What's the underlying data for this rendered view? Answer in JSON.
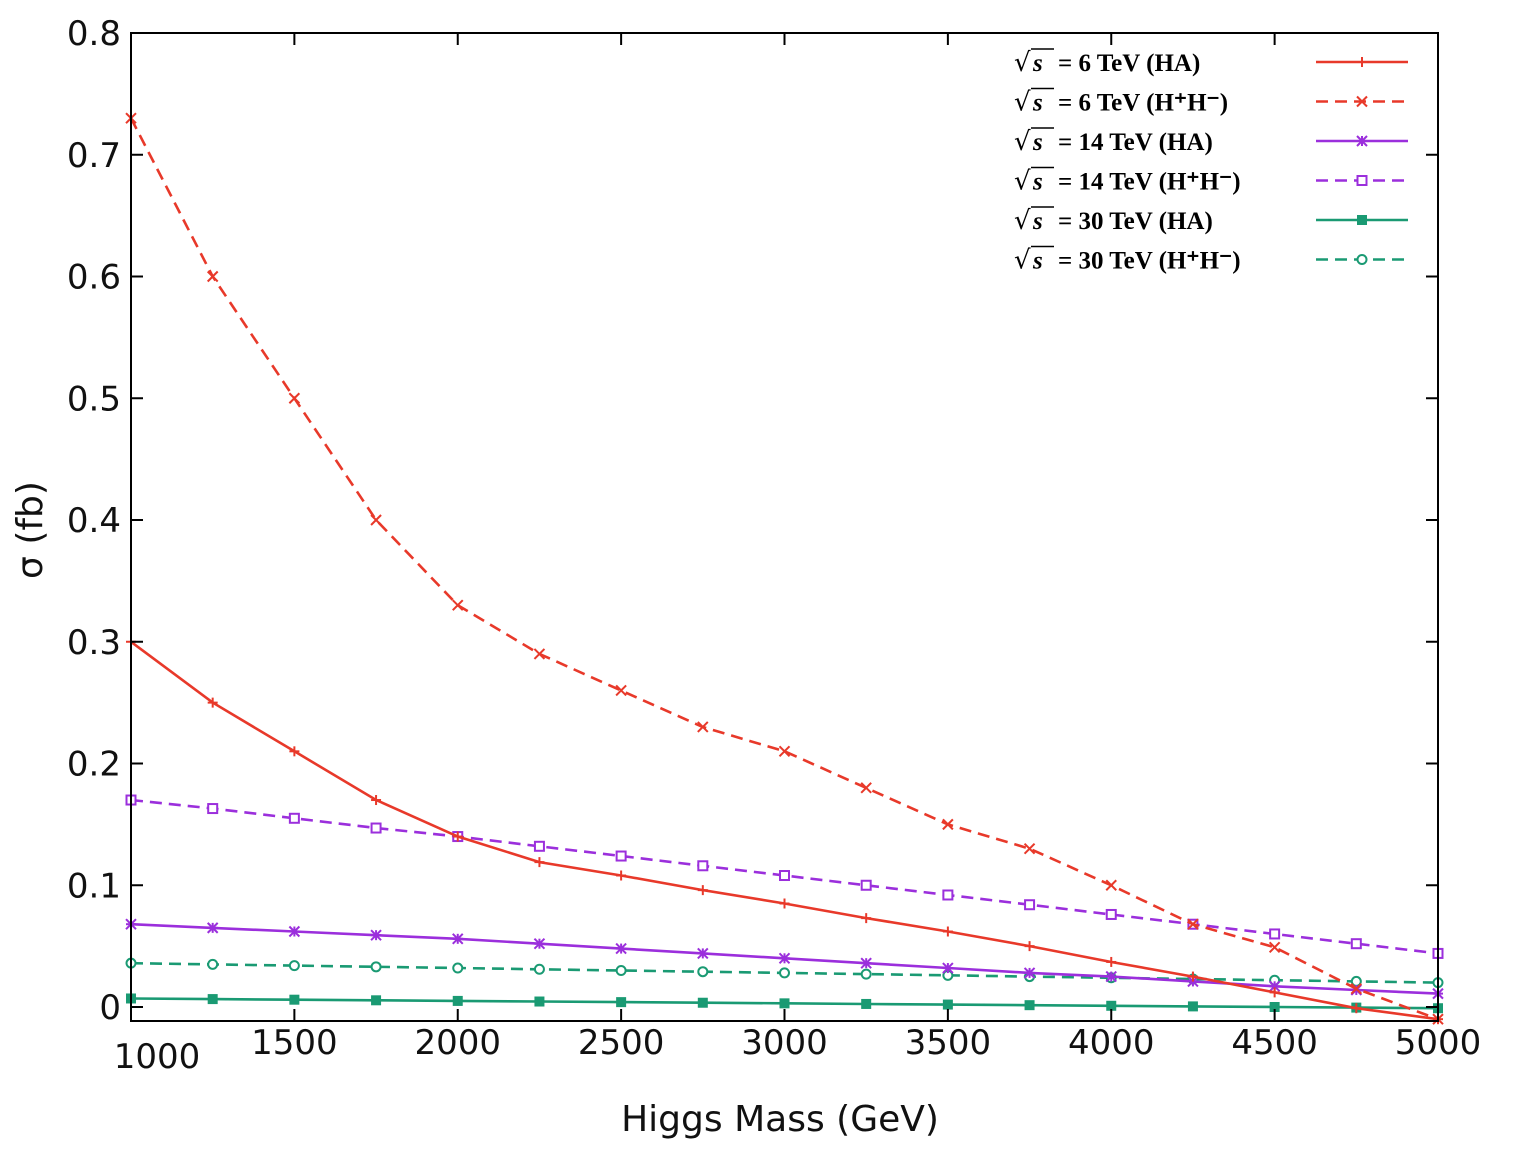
{
  "chart_data": {
    "type": "line",
    "title": "",
    "xlabel": "Higgs Mass (GeV)",
    "ylabel": "σ (fb)",
    "xlim": [
      1000,
      5000
    ],
    "ylim": [
      -0.01,
      0.8
    ],
    "xticks": [
      {
        "value": 1000,
        "label": "1000"
      },
      {
        "value": 1500,
        "label": "1500"
      },
      {
        "value": 2000,
        "label": "2000"
      },
      {
        "value": 2500,
        "label": "2500"
      },
      {
        "value": 3000,
        "label": "3000"
      },
      {
        "value": 3500,
        "label": "3500"
      },
      {
        "value": 4000,
        "label": "4000"
      },
      {
        "value": 4500,
        "label": "4500"
      },
      {
        "value": 5000,
        "label": "5000"
      }
    ],
    "yticks": [
      {
        "value": 0,
        "label": "0"
      },
      {
        "value": 0.1,
        "label": "0.1"
      },
      {
        "value": 0.2,
        "label": "0.2"
      },
      {
        "value": 0.3,
        "label": "0.3"
      },
      {
        "value": 0.4,
        "label": "0.4"
      },
      {
        "value": 0.5,
        "label": "0.5"
      },
      {
        "value": 0.6,
        "label": "0.6"
      },
      {
        "value": 0.7,
        "label": "0.7"
      },
      {
        "value": 0.8,
        "label": "0.8"
      }
    ],
    "grid": false,
    "legend_position": "top-right",
    "x": [
      1000,
      1250,
      1500,
      1750,
      2000,
      2250,
      2500,
      2750,
      3000,
      3250,
      3500,
      3750,
      4000,
      4250,
      4500,
      4750,
      5000
    ],
    "series": [
      {
        "name": "√s = 6 TeV (HA)",
        "label_main": "= 6  TeV (HA)",
        "color": "#e8392a",
        "dash": "solid",
        "marker": "plus",
        "values": [
          0.3,
          0.25,
          0.21,
          0.17,
          0.14,
          0.119,
          0.108,
          0.096,
          0.085,
          0.073,
          0.062,
          0.05,
          0.037,
          0.025,
          0.012,
          -0.001,
          -0.01
        ]
      },
      {
        "name": "√s = 6 TeV (H⁺H⁻)",
        "label_main": "= 6  TeV (H⁺H⁻)",
        "color": "#e8392a",
        "dash": "dashed",
        "marker": "cross",
        "values": [
          0.73,
          0.6,
          0.5,
          0.4,
          0.33,
          0.29,
          0.26,
          0.23,
          0.21,
          0.18,
          0.15,
          0.13,
          0.1,
          0.068,
          0.049,
          0.015,
          -0.01
        ]
      },
      {
        "name": "√s = 14 TeV (HA)",
        "label_main": "= 14  TeV (HA)",
        "color": "#9b2fdc",
        "dash": "solid",
        "marker": "star",
        "values": [
          0.068,
          0.065,
          0.062,
          0.059,
          0.056,
          0.052,
          0.048,
          0.044,
          0.04,
          0.036,
          0.032,
          0.028,
          0.025,
          0.021,
          0.017,
          0.014,
          0.011
        ]
      },
      {
        "name": "√s = 14 TeV (H⁺H⁻)",
        "label_main": "= 14  TeV (H⁺H⁻)",
        "color": "#9b2fdc",
        "dash": "dashed",
        "marker": "square",
        "values": [
          0.17,
          0.163,
          0.155,
          0.147,
          0.14,
          0.132,
          0.124,
          0.116,
          0.108,
          0.1,
          0.092,
          0.084,
          0.076,
          0.068,
          0.06,
          0.052,
          0.044
        ]
      },
      {
        "name": "√s = 30 TeV (HA)",
        "label_main": "= 30  TeV (HA)",
        "color": "#1a9a73",
        "dash": "solid",
        "marker": "filled-square",
        "values": [
          0.007,
          0.0065,
          0.006,
          0.0055,
          0.005,
          0.0045,
          0.004,
          0.0035,
          0.003,
          0.0025,
          0.002,
          0.0015,
          0.001,
          0.0005,
          0.0,
          -0.0005,
          -0.001
        ]
      },
      {
        "name": "√s = 30 TeV (H⁺H⁻)",
        "label_main": "= 30  TeV (H⁺H⁻)",
        "color": "#1a9a73",
        "dash": "dashed",
        "marker": "circle",
        "values": [
          0.036,
          0.035,
          0.034,
          0.033,
          0.032,
          0.031,
          0.03,
          0.029,
          0.028,
          0.027,
          0.026,
          0.025,
          0.024,
          0.023,
          0.022,
          0.021,
          0.02
        ]
      }
    ]
  }
}
